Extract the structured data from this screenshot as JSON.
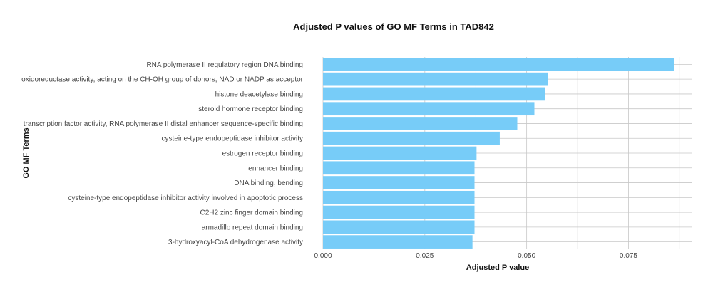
{
  "chart_data": {
    "type": "bar",
    "orientation": "horizontal",
    "title": "Adjusted P values of GO MF Terms in TAD842",
    "xlabel": "Adjusted P value",
    "ylabel": "GO MF Terms",
    "xlim": [
      0,
      0.0905
    ],
    "xticks": [
      "0.000",
      "0.025",
      "0.050",
      "0.075"
    ],
    "tick_values": [
      0,
      0.025,
      0.05,
      0.075
    ],
    "grid": true,
    "bar_color": "#77CCF8",
    "grid_color": "#C8C8C8",
    "categories": [
      "RNA polymerase II regulatory region DNA binding",
      "oxidoreductase activity, acting on the CH-OH group of donors, NAD or NADP as acceptor",
      "histone deacetylase binding",
      "steroid hormone receptor binding",
      "transcription factor activity, RNA polymerase II distal enhancer sequence-specific binding",
      "cysteine-type endopeptidase inhibitor activity",
      "estrogen receptor binding",
      "enhancer binding",
      "DNA binding, bending",
      "cysteine-type endopeptidase inhibitor activity involved in apoptotic process",
      "C2H2 zinc finger domain binding",
      "armadillo repeat domain binding",
      "3-hydroxyacyl-CoA dehydrogenase activity"
    ],
    "values": [
      0.0862,
      0.0552,
      0.0546,
      0.0519,
      0.0477,
      0.0434,
      0.0377,
      0.0372,
      0.0372,
      0.0372,
      0.0372,
      0.0372,
      0.0367
    ]
  }
}
